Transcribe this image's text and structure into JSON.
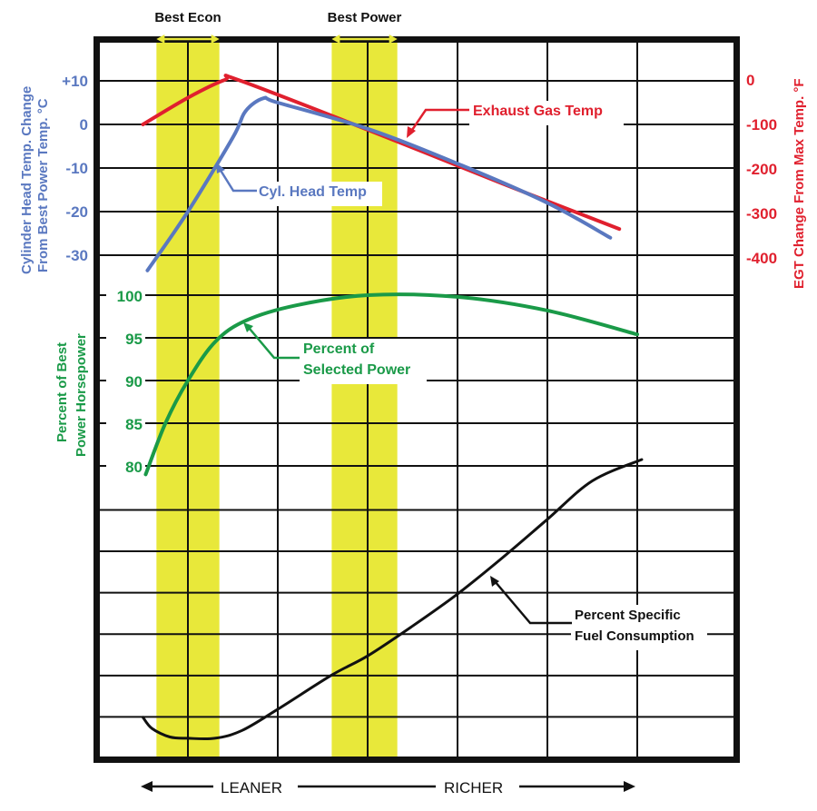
{
  "chart_data": {
    "type": "line",
    "title": "",
    "colors": {
      "cht": "#5a78c0",
      "egt": "#e0202e",
      "power": "#1a9a48",
      "bsfc": "#111111",
      "band": "#e8e83a",
      "grid": "#111111"
    },
    "x_axis": {
      "label_left": "LEANER",
      "label_right": "RICHER",
      "range": [
        0,
        7.1
      ],
      "gridlines": [
        1,
        2,
        3,
        4,
        5,
        6
      ],
      "units": "relative mixture (lean → rich)"
    },
    "bands": [
      {
        "label": "Best  Econ",
        "x": [
          0.65,
          1.35
        ]
      },
      {
        "label": "Best Power",
        "x": [
          2.6,
          3.33
        ]
      }
    ],
    "axes": {
      "cht": {
        "label": [
          "Cylinder Head Temp. Change",
          "From Best Power Temp. °C"
        ],
        "ticks": [
          "+10",
          "0",
          "-10",
          "-20",
          "-30"
        ],
        "tick_values": [
          10,
          0,
          -10,
          -20,
          -30
        ]
      },
      "egt": {
        "label": "EGT Change From Max Temp. °F",
        "ticks": [
          "0",
          "-100",
          "-200",
          "-300",
          "-400"
        ],
        "tick_values": [
          0,
          -100,
          -200,
          -300,
          -400
        ]
      },
      "power": {
        "label": [
          "Percent of Best",
          "Power Horsepower"
        ],
        "ticks": [
          "100",
          "95",
          "90",
          "85",
          "80"
        ],
        "tick_values": [
          100,
          95,
          90,
          85,
          80
        ]
      }
    },
    "series": [
      {
        "name": "Exhaust Gas Temp",
        "key": "egt",
        "x": [
          0.5,
          1.0,
          1.41,
          1.56,
          3.0,
          4.5,
          5.8
        ],
        "y": [
          -100,
          -40,
          0,
          0,
          -112,
          -233,
          -335
        ]
      },
      {
        "name": "Cyl. Head Temp",
        "key": "cht",
        "x": [
          0.55,
          1.0,
          1.5,
          1.64,
          1.84,
          2.0,
          3.0,
          4.0,
          5.0,
          5.7
        ],
        "y": [
          -33.5,
          -20,
          -3,
          3,
          6,
          5,
          -1,
          -9,
          -18,
          -26
        ]
      },
      {
        "name": "Percent of Selected Power",
        "key": "power",
        "x": [
          0.53,
          0.75,
          1.0,
          1.3,
          1.64,
          2.2,
          3.0,
          4.0,
          5.0,
          6.0
        ],
        "y": [
          79,
          85,
          90,
          94.5,
          97,
          98.8,
          100,
          99.8,
          98.2,
          95.4
        ]
      },
      {
        "name": "Percent Specific Fuel Consumption",
        "key": "bsfc",
        "x": [
          0.5,
          0.6,
          0.8,
          1.0,
          1.3,
          1.6,
          2.0,
          2.6,
          3.0,
          3.5,
          4.0,
          4.5,
          5.0,
          5.5,
          6.05
        ],
        "y": [
          0.96,
          0.7,
          0.5,
          0.47,
          0.47,
          0.65,
          1.15,
          1.95,
          2.4,
          3.1,
          3.85,
          4.7,
          5.6,
          6.5,
          7.0
        ]
      }
    ],
    "annotations": {
      "egt": [
        "Exhaust Gas Temp"
      ],
      "cht": [
        "Cyl. Head Temp"
      ],
      "power": [
        "Percent of",
        "Selected Power"
      ],
      "bsfc": [
        "Percent Specific",
        "Fuel Consumption"
      ]
    }
  }
}
